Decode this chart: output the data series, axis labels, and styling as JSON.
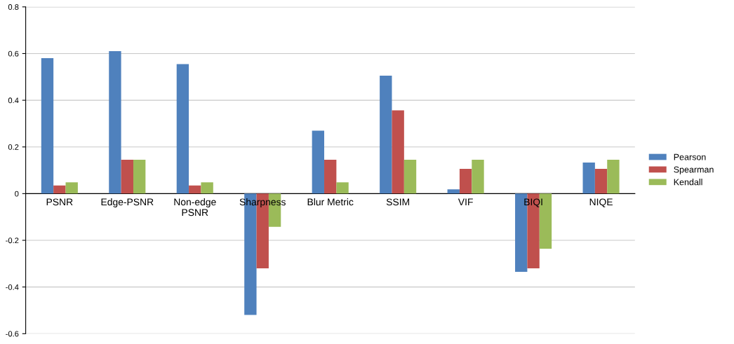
{
  "chart_data": {
    "type": "bar",
    "categories": [
      "PSNR",
      "Edge-PSNR",
      "Non-edge\nPSNR",
      "Sharpness",
      "Blur Metric",
      "SSIM",
      "VIF",
      "BIQI",
      "NIQE"
    ],
    "series": [
      {
        "name": "Pearson",
        "color": "#4f81bd",
        "values": [
          0.58,
          0.61,
          0.555,
          -0.52,
          0.27,
          0.505,
          0.018,
          -0.335,
          0.133
        ]
      },
      {
        "name": "Spearman",
        "color": "#c0504d",
        "values": [
          0.035,
          0.145,
          0.035,
          -0.32,
          0.145,
          0.357,
          0.106,
          -0.32,
          0.106
        ]
      },
      {
        "name": "Kendall",
        "color": "#9bbb59",
        "values": [
          0.048,
          0.145,
          0.048,
          -0.142,
          0.048,
          0.145,
          0.145,
          -0.236,
          0.145
        ]
      }
    ],
    "ylim": [
      -0.6,
      0.8
    ],
    "yticks": [
      -0.6,
      -0.4,
      -0.2,
      0,
      0.2,
      0.4,
      0.6,
      0.8
    ],
    "grid": "y",
    "legend": "right"
  }
}
